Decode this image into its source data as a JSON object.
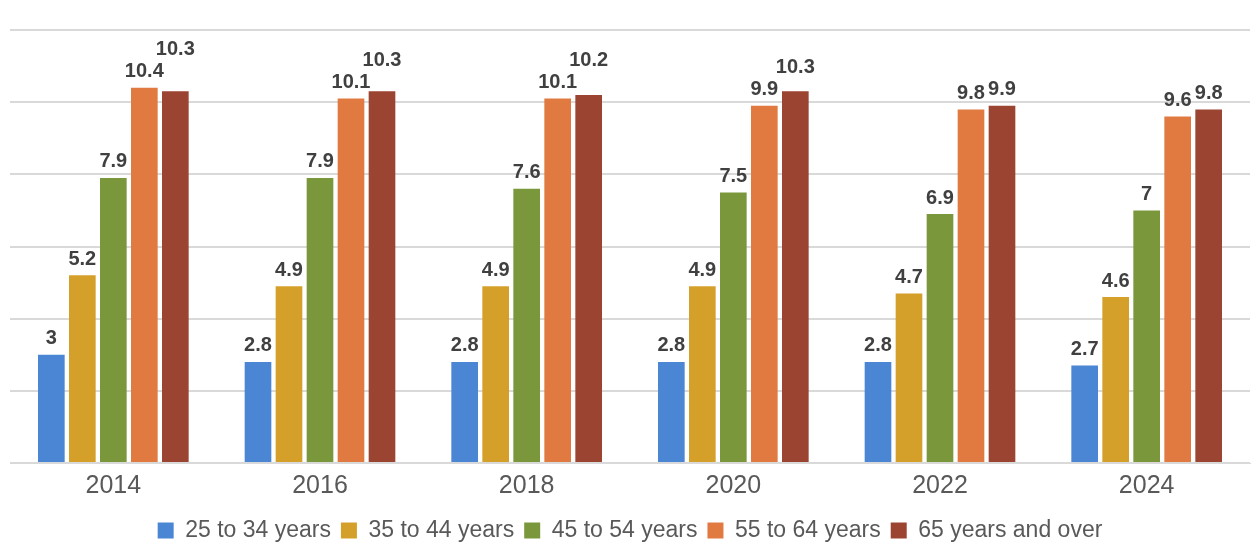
{
  "chart_data": {
    "type": "bar",
    "categories": [
      "2014",
      "2016",
      "2018",
      "2020",
      "2022",
      "2024"
    ],
    "series": [
      {
        "name": "25 to 34 years",
        "color": "#4a86d4",
        "values": [
          3,
          2.8,
          2.8,
          2.8,
          2.8,
          2.7
        ]
      },
      {
        "name": "35 to 44 years",
        "color": "#d4a02a",
        "values": [
          5.2,
          4.9,
          4.9,
          4.9,
          4.7,
          4.6
        ]
      },
      {
        "name": "45 to 54 years",
        "color": "#7b973b",
        "values": [
          7.9,
          7.9,
          7.6,
          7.5,
          6.9,
          7
        ]
      },
      {
        "name": "55 to 64 years",
        "color": "#e07a40",
        "values": [
          10.4,
          10.1,
          10.1,
          9.9,
          9.8,
          9.6
        ]
      },
      {
        "name": "65 years and over",
        "color": "#9c4432",
        "values": [
          10.3,
          10.3,
          10.2,
          10.3,
          9.9,
          9.8
        ]
      }
    ],
    "ylim": [
      0,
      12
    ],
    "yticks": [
      {
        "value": 0,
        "label": null
      },
      {
        "value": 2,
        "label": null
      },
      {
        "value": 4,
        "label": null
      },
      {
        "value": 6,
        "label": null
      },
      {
        "value": 8,
        "label": null
      },
      {
        "value": 10,
        "label": null
      },
      {
        "value": 12,
        "label": null
      }
    ],
    "grid": "y",
    "tick_labels": "x",
    "legend": "bottom",
    "data_labels": true
  }
}
